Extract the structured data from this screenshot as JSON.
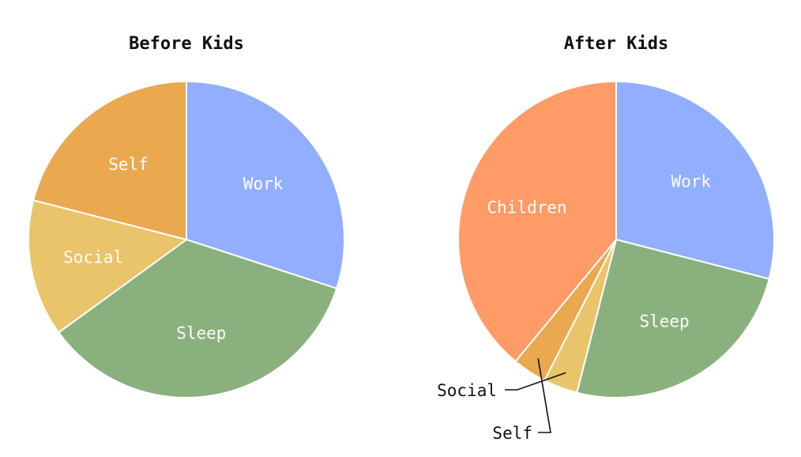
{
  "chart_data": [
    {
      "type": "pie",
      "title": "Before Kids",
      "slices": [
        {
          "label": "Work",
          "value": 30,
          "color": "#92AEFF",
          "label_style": "inside"
        },
        {
          "label": "Sleep",
          "value": 35,
          "color": "#8AB17D",
          "label_style": "inside"
        },
        {
          "label": "Social",
          "value": 14,
          "color": "#E9C46A",
          "label_style": "inside"
        },
        {
          "label": "Self",
          "value": 21,
          "color": "#EAA84F",
          "label_style": "inside"
        }
      ]
    },
    {
      "type": "pie",
      "title": "After Kids",
      "slices": [
        {
          "label": "Work",
          "value": 29,
          "color": "#92AEFF",
          "label_style": "inside"
        },
        {
          "label": "Sleep",
          "value": 25,
          "color": "#8AB17D",
          "label_style": "inside"
        },
        {
          "label": "Social",
          "value": 3.5,
          "color": "#E9C46A",
          "label_style": "callout"
        },
        {
          "label": "Self",
          "value": 3.5,
          "color": "#EAA84F",
          "label_style": "callout"
        },
        {
          "label": "Children",
          "value": 39,
          "color": "#FF9B66",
          "label_style": "inside"
        }
      ]
    }
  ]
}
